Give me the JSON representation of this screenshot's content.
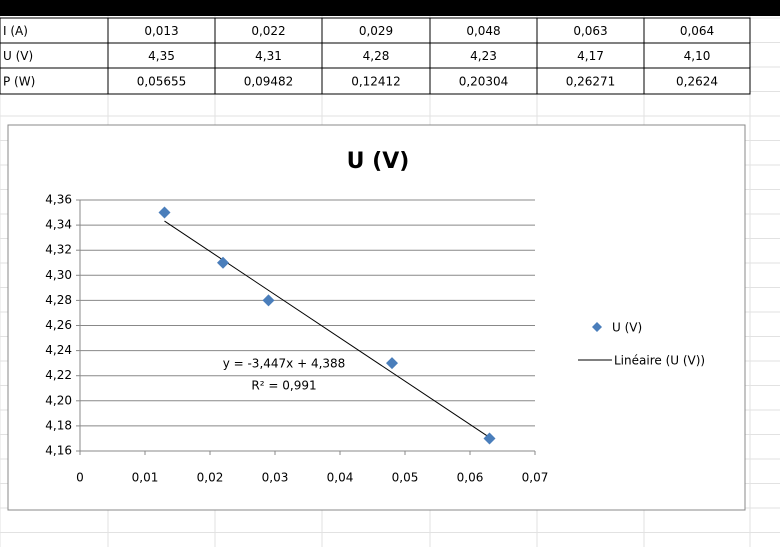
{
  "table": {
    "rows": [
      [
        "I (A)",
        "0,013",
        "0,022",
        "0,029",
        "0,048",
        "0,063",
        "0,064"
      ],
      [
        "U (V)",
        "4,35",
        "4,31",
        "4,28",
        "4,23",
        "4,17",
        "4,10"
      ],
      [
        "P (W)",
        "0,05655",
        "0,09482",
        "0,12412",
        "0,20304",
        "0,26271",
        "0,2624"
      ]
    ]
  },
  "chart_data": {
    "type": "scatter",
    "title": "U (V)",
    "series": [
      {
        "name": "U (V)",
        "color": "#4a7ebb",
        "x": [
          0.013,
          0.022,
          0.029,
          0.048,
          0.063
        ],
        "values": [
          4.35,
          4.31,
          4.28,
          4.23,
          4.17
        ]
      }
    ],
    "trendline": {
      "name": "Linéaire (U (V))",
      "color": "#000000",
      "slope": -3.447,
      "intercept": 4.388,
      "equation": "y = -3,447x + 4,388",
      "r2": "R² = 0,991"
    },
    "xlim": [
      0,
      0.07
    ],
    "xticks": [
      0,
      {
        "value": 0.01,
        "label": "0,01"
      },
      {
        "value": 0.02,
        "label": "0,02"
      },
      {
        "value": 0.03,
        "label": "0,03"
      },
      {
        "value": 0.04,
        "label": "0,04"
      },
      {
        "value": 0.05,
        "label": "0,05"
      },
      {
        "value": 0.06,
        "label": "0,06"
      },
      {
        "value": 0.07,
        "label": "0,07"
      }
    ],
    "ylim": [
      4.16,
      4.36
    ],
    "yticks": [
      {
        "value": 4.16,
        "label": "4,16"
      },
      {
        "value": 4.18,
        "label": "4,18"
      },
      {
        "value": 4.2,
        "label": "4,20"
      },
      {
        "value": 4.22,
        "label": "4,22"
      },
      {
        "value": 4.24,
        "label": "4,24"
      },
      {
        "value": 4.26,
        "label": "4,26"
      },
      {
        "value": 4.28,
        "label": "4,28"
      },
      {
        "value": 4.3,
        "label": "4,30"
      },
      {
        "value": 4.32,
        "label": "4,32"
      },
      {
        "value": 4.34,
        "label": "4,34"
      },
      {
        "value": 4.36,
        "label": "4,36"
      }
    ],
    "grid": true,
    "legend": "right"
  }
}
